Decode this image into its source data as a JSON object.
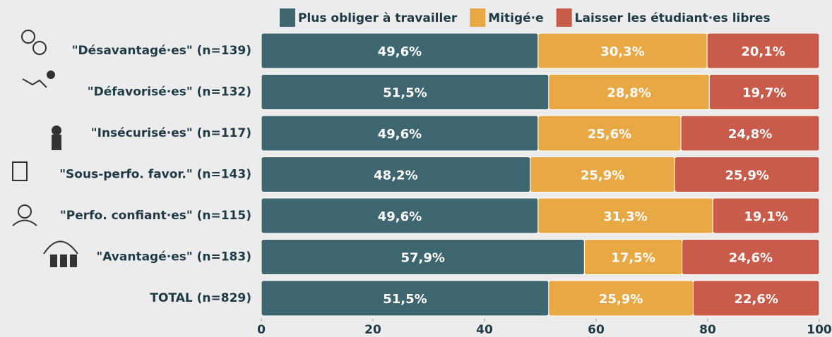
{
  "chart_data": {
    "type": "stacked_bar_horizontal",
    "categories": [
      "\"Désavantagé·es\" (n=139)",
      "\"Défavorisé·es\" (n=132)",
      "\"Insécurisé·es\" (n=117)",
      "\"Sous-perfo. favor.\" (n=143)",
      "\"Perfo. confiant·es\" (n=115)",
      "\"Avantagé·es\" (n=183)",
      "TOTAL (n=829)"
    ],
    "series": [
      {
        "name": "Plus obliger à travailler",
        "color": "#3e6670",
        "values": [
          49.6,
          51.5,
          49.6,
          48.2,
          49.6,
          57.9,
          51.5
        ],
        "value_labels": [
          "49,6%",
          "51,5%",
          "49,6%",
          "48,2%",
          "49,6%",
          "57,9%",
          "51,5%"
        ]
      },
      {
        "name": "Mitigé·e",
        "color": "#e8a844",
        "values": [
          30.3,
          28.8,
          25.6,
          25.9,
          31.3,
          17.5,
          25.9
        ],
        "value_labels": [
          "30,3%",
          "28,8%",
          "25,6%",
          "25,9%",
          "31,3%",
          "17,5%",
          "25,9%"
        ]
      },
      {
        "name": "Laisser les étudiant·es libres",
        "color": "#c95b4a",
        "values": [
          20.1,
          19.7,
          24.8,
          25.9,
          19.1,
          24.6,
          22.6
        ],
        "value_labels": [
          "20,1%",
          "19,7%",
          "24,8%",
          "25,9%",
          "19,1%",
          "24,6%",
          "22,6%"
        ]
      }
    ],
    "xlim": [
      0,
      100
    ],
    "xticks": [
      0,
      20,
      40,
      60,
      80,
      100
    ],
    "grid": false,
    "legend": "top"
  }
}
